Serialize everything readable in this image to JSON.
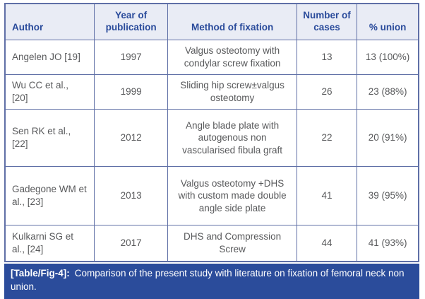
{
  "table": {
    "headers": [
      "Author",
      "Year of publication",
      "Method of fixation",
      "Number of cases",
      "% union"
    ],
    "rows": [
      {
        "author": "Angelen JO [19]",
        "year": "1997",
        "method": "Valgus osteotomy with condylar screw fixation",
        "cases": "13",
        "union": "13 (100%)"
      },
      {
        "author": "Wu CC et al., [20]",
        "year": "1999",
        "method": "Sliding hip screw±valgus osteotomy",
        "cases": "26",
        "union": "23 (88%)"
      },
      {
        "author": "Sen RK et al., [22]",
        "year": "2012",
        "method": "Angle blade plate with autogenous non vascularised fibula graft",
        "cases": "22",
        "union": "20 (91%)"
      },
      {
        "author": "Gadegone WM et al., [23]",
        "year": "2013",
        "method": "Valgus osteotomy +DHS with custom made double angle side plate",
        "cases": "41",
        "union": "39 (95%)"
      },
      {
        "author": "Kulkarni SG et al., [24]",
        "year": "2017",
        "method": "DHS and Compression Screw",
        "cases": "44",
        "union": "41 (93%)"
      }
    ]
  },
  "caption": {
    "label": "[Table/Fig-4]:",
    "text": "Comparison of the present study with literature on fixation of femoral neck non union."
  },
  "colors": {
    "header_bg": "#e9ecf5",
    "header_text": "#2a4b9b",
    "border": "#5f6fa6",
    "body_text": "#58595b",
    "caption_bg": "#2b4c9b",
    "caption_text": "#ffffff"
  }
}
